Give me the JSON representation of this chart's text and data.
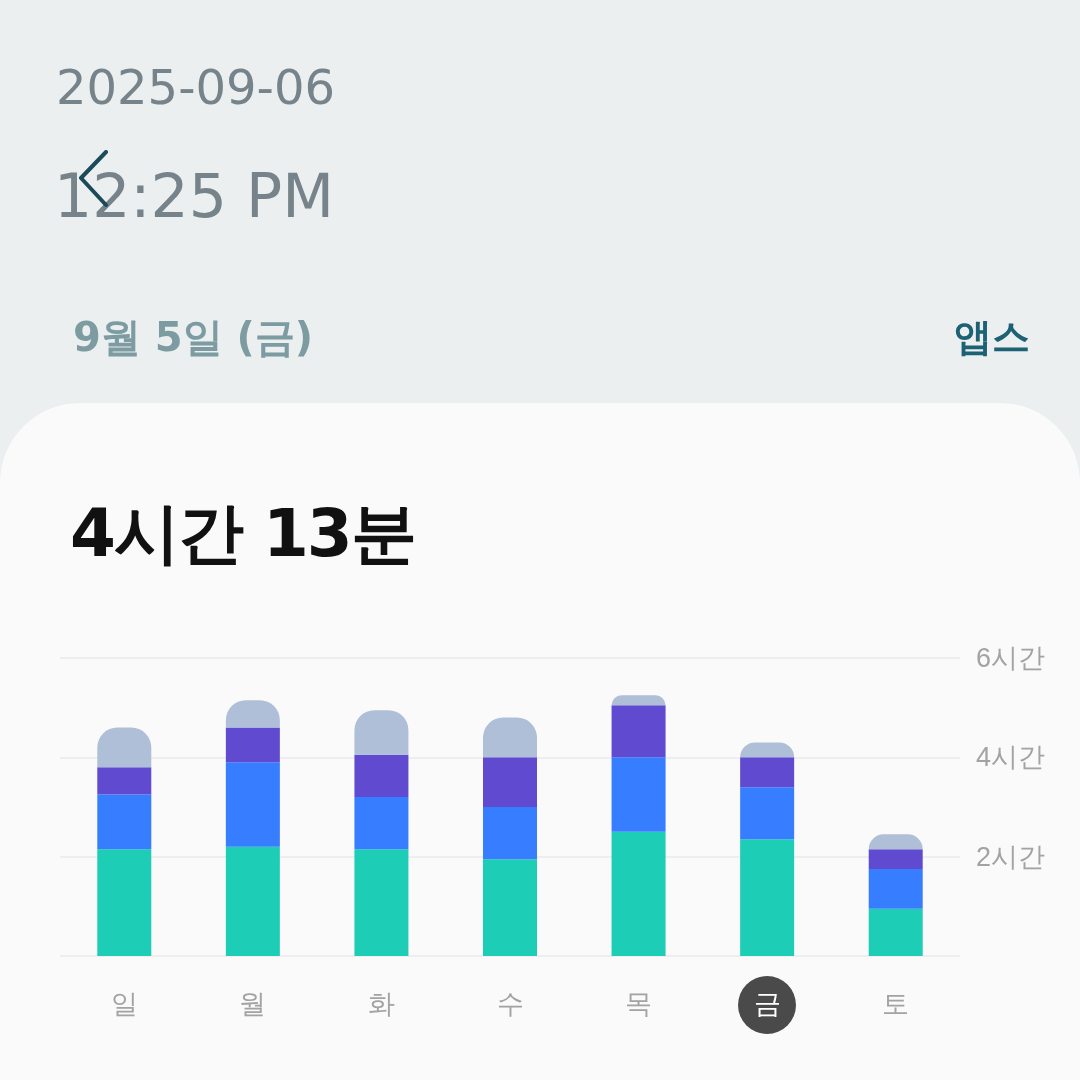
{
  "chart_data": {
    "type": "bar",
    "title": "4시간 13분",
    "subtitle": "9월 5일 (금)",
    "annotations": [
      "2025-09-06",
      "12:25 PM",
      "앱스"
    ],
    "categories": [
      "일",
      "월",
      "화",
      "수",
      "목",
      "금",
      "토"
    ],
    "stacked": true,
    "series": [
      {
        "color": "#1ecdb5",
        "values": [
          2.15,
          2.2,
          2.15,
          1.95,
          2.5,
          2.35,
          0.95
        ]
      },
      {
        "color": "#377dff",
        "values": [
          1.1,
          1.7,
          1.05,
          1.05,
          1.5,
          1.05,
          0.8
        ]
      },
      {
        "color": "#604bd0",
        "values": [
          0.55,
          0.7,
          0.85,
          1.0,
          1.05,
          0.6,
          0.4
        ]
      },
      {
        "color": "#b0bfd8",
        "values": [
          0.8,
          0.55,
          0.9,
          0.8,
          0.2,
          0.3,
          0.3
        ]
      }
    ],
    "ylim": [
      0,
      6
    ],
    "yticks": [
      {
        "value": 0,
        "label": null
      },
      {
        "value": 2,
        "label": "2시간"
      },
      {
        "value": 4,
        "label": "4시간"
      },
      {
        "value": 6,
        "label": "6시간"
      }
    ],
    "grid": "y"
  }
}
